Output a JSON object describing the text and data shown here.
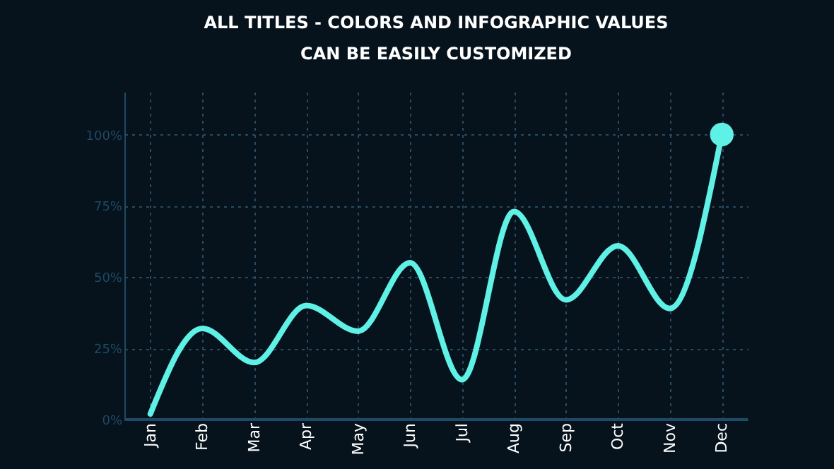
{
  "chart_data": {
    "type": "line",
    "title": "ALL TITLES - COLORS AND INFOGRAPHIC VALUES",
    "subtitle": "CAN BE EASILY CUSTOMIZED",
    "categories": [
      "Jan",
      "Feb",
      "Mar",
      "Apr",
      "May",
      "Jun",
      "Jul",
      "Aug",
      "Sep",
      "Oct",
      "Nov",
      "Dec"
    ],
    "series": [
      {
        "color": "#5ff0e6",
        "values": [
          2,
          32,
          20,
          40,
          31,
          55,
          14,
          73,
          42,
          61,
          39,
          100
        ]
      }
    ],
    "ylim": [
      0,
      115
    ],
    "yticks": [
      {
        "value": 0,
        "label": "0%"
      },
      {
        "value": 25,
        "label": "25%"
      },
      {
        "value": 50,
        "label": "50%"
      },
      {
        "value": 75,
        "label": "75%"
      },
      {
        "value": 100,
        "label": "100%"
      }
    ],
    "grid": true,
    "legend": false
  }
}
